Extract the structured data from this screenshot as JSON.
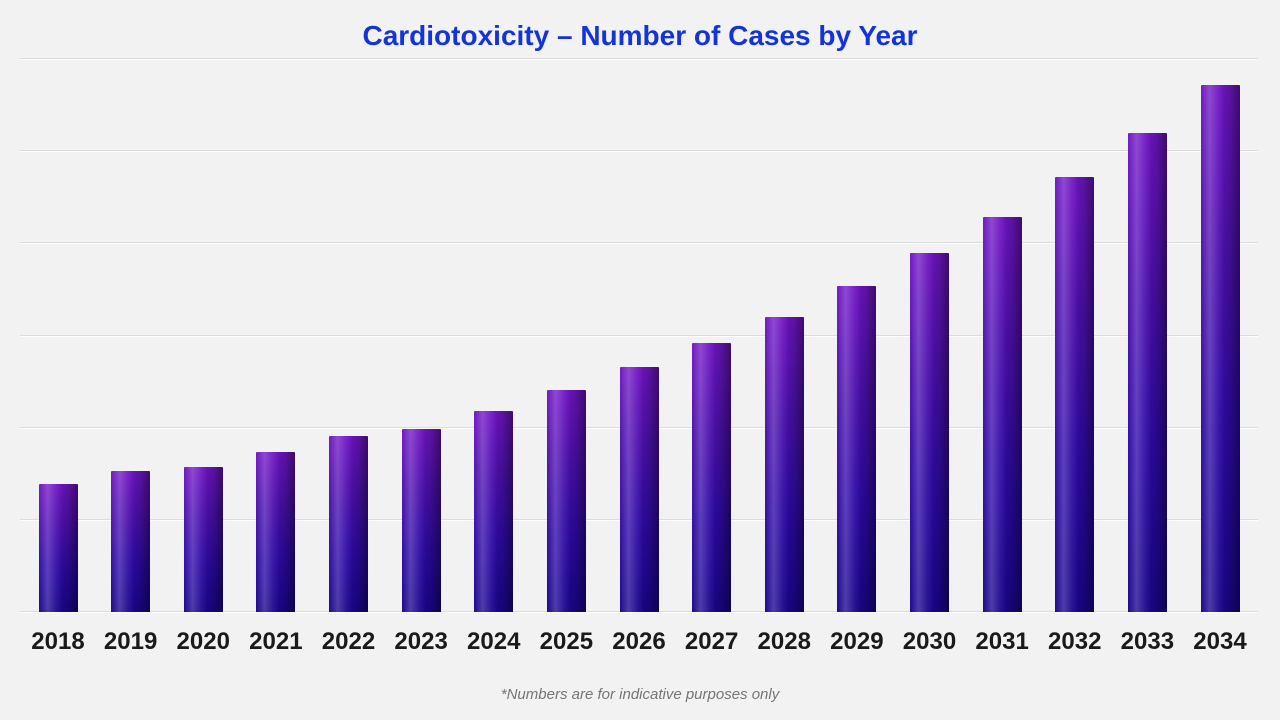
{
  "page": {
    "background_color": "#f2f2f2",
    "gridline_color": "#dcdcdc",
    "label_color": "#1a1a1a",
    "footnote_color": "#757575",
    "title_color": "#1434d8"
  },
  "chart": {
    "title": "Cardiotoxicity – Number of Cases by Year",
    "footnote": "*Numbers are for indicative purposes only"
  },
  "chart_data": {
    "type": "bar",
    "title": "Cardiotoxicity – Number of Cases by Year",
    "categories": [
      "2018",
      "2019",
      "2020",
      "2021",
      "2022",
      "2023",
      "2024",
      "2025",
      "2026",
      "2027",
      "2028",
      "2029",
      "2030",
      "2031",
      "2032",
      "2033",
      "2034"
    ],
    "values": [
      1.39,
      1.53,
      1.57,
      1.73,
      1.91,
      1.98,
      2.18,
      2.4,
      2.65,
      2.91,
      3.2,
      3.53,
      3.89,
      4.28,
      4.71,
      5.19,
      5.71
    ],
    "values_note": "y-axis has no tick labels; values estimated in gridline units (1 unit = 1 gridline interval)",
    "xlabel": "",
    "ylabel": "",
    "ylim": [
      0,
      6
    ],
    "gridline_step": 1,
    "grid": true,
    "legend": false,
    "y_tick_labels_visible": false,
    "bar_gradient": {
      "top": "#7015c4",
      "upper_mid": "#4d10ae",
      "lower_mid": "#2d0aa4",
      "bottom": "#1a058c",
      "highlight_side": "left",
      "shadow_side": "right"
    },
    "footnote": "*Numbers are for indicative purposes only"
  }
}
